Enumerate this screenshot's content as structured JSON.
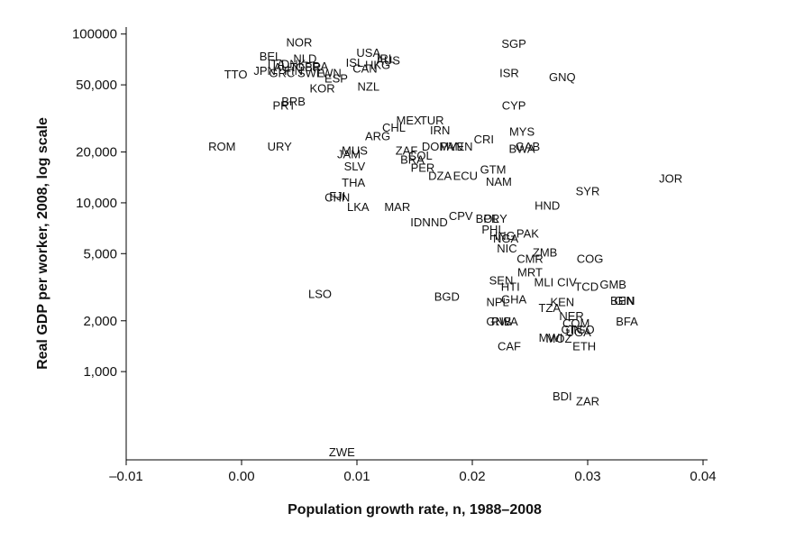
{
  "chart_data": {
    "type": "scatter",
    "title": "",
    "xlabel": "Population growth rate, n, 1988–2008",
    "ylabel": "Real GDP per worker, 2008, log scale",
    "xlim": [
      -0.01,
      0.04
    ],
    "ylim": [
      300,
      110000
    ],
    "yscale": "log",
    "grid": false,
    "legend": "none",
    "x_ticks": [
      {
        "value": -0.01,
        "label": "–0.01"
      },
      {
        "value": 0.0,
        "label": "0.00"
      },
      {
        "value": 0.01,
        "label": "0.01"
      },
      {
        "value": 0.02,
        "label": "0.02"
      },
      {
        "value": 0.03,
        "label": "0.03"
      },
      {
        "value": 0.04,
        "label": "0.04"
      }
    ],
    "y_ticks": [
      {
        "value": 100000,
        "label": "100000"
      },
      {
        "value": 50000,
        "label": "50,000"
      },
      {
        "value": 20000,
        "label": "20,000"
      },
      {
        "value": 10000,
        "label": "10,000"
      },
      {
        "value": 5000,
        "label": "5,000"
      },
      {
        "value": 2000,
        "label": "2,000"
      },
      {
        "value": 1000,
        "label": "1,000"
      }
    ],
    "points": [
      {
        "label": "NOR",
        "x": 0.005,
        "y": 90000
      },
      {
        "label": "USA",
        "x": 0.011,
        "y": 78000
      },
      {
        "label": "BEL",
        "x": 0.0025,
        "y": 74000
      },
      {
        "label": "NLD",
        "x": 0.0055,
        "y": 72000
      },
      {
        "label": "IRL",
        "x": 0.0125,
        "y": 72000
      },
      {
        "label": "AUS",
        "x": 0.0127,
        "y": 70000
      },
      {
        "label": "ITA",
        "x": 0.003,
        "y": 67000
      },
      {
        "label": "DNK",
        "x": 0.0045,
        "y": 67000
      },
      {
        "label": "FRA",
        "x": 0.0065,
        "y": 65000
      },
      {
        "label": "ISL",
        "x": 0.0098,
        "y": 68000
      },
      {
        "label": "HKG",
        "x": 0.0118,
        "y": 66000
      },
      {
        "label": "CAN",
        "x": 0.0107,
        "y": 63000
      },
      {
        "label": "AUT",
        "x": 0.0038,
        "y": 64000
      },
      {
        "label": "GBR",
        "x": 0.0058,
        "y": 64000
      },
      {
        "label": "JPN",
        "x": 0.002,
        "y": 61000
      },
      {
        "label": "GRC",
        "x": 0.0035,
        "y": 59000
      },
      {
        "label": "FIN",
        "x": 0.0045,
        "y": 61000
      },
      {
        "label": "SWE",
        "x": 0.006,
        "y": 59000
      },
      {
        "label": "TWN",
        "x": 0.0075,
        "y": 59000
      },
      {
        "label": "TTO",
        "x": -0.0005,
        "y": 58000
      },
      {
        "label": "ESP",
        "x": 0.0082,
        "y": 55000
      },
      {
        "label": "SGP",
        "x": 0.0236,
        "y": 88000
      },
      {
        "label": "ISR",
        "x": 0.0232,
        "y": 59000
      },
      {
        "label": "GNQ",
        "x": 0.0278,
        "y": 56000
      },
      {
        "label": "KOR",
        "x": 0.007,
        "y": 48000
      },
      {
        "label": "NZL",
        "x": 0.011,
        "y": 49000
      },
      {
        "label": "BRB",
        "x": 0.0045,
        "y": 40000
      },
      {
        "label": "PRT",
        "x": 0.0037,
        "y": 38000
      },
      {
        "label": "CYP",
        "x": 0.0236,
        "y": 38000
      },
      {
        "label": "MEX",
        "x": 0.0145,
        "y": 31000
      },
      {
        "label": "TUR",
        "x": 0.0165,
        "y": 31000
      },
      {
        "label": "CHL",
        "x": 0.0132,
        "y": 28000
      },
      {
        "label": "IRN",
        "x": 0.0172,
        "y": 27000
      },
      {
        "label": "MYS",
        "x": 0.0243,
        "y": 26500
      },
      {
        "label": "ARG",
        "x": 0.0118,
        "y": 25000
      },
      {
        "label": "CRI",
        "x": 0.021,
        "y": 24000
      },
      {
        "label": "ROM",
        "x": -0.0017,
        "y": 21700
      },
      {
        "label": "URY",
        "x": 0.0033,
        "y": 21700
      },
      {
        "label": "DOM",
        "x": 0.0168,
        "y": 21700
      },
      {
        "label": "PAN",
        "x": 0.0182,
        "y": 21700
      },
      {
        "label": "VEN",
        "x": 0.019,
        "y": 21700
      },
      {
        "label": "GAB",
        "x": 0.0248,
        "y": 21700
      },
      {
        "label": "BWA",
        "x": 0.0243,
        "y": 21000
      },
      {
        "label": "MUS",
        "x": 0.0098,
        "y": 20500
      },
      {
        "label": "ZAF",
        "x": 0.0143,
        "y": 20500
      },
      {
        "label": "JAM",
        "x": 0.0093,
        "y": 19500
      },
      {
        "label": "COL",
        "x": 0.0155,
        "y": 19200
      },
      {
        "label": "BRA",
        "x": 0.0148,
        "y": 18200
      },
      {
        "label": "SLV",
        "x": 0.0098,
        "y": 16500
      },
      {
        "label": "PER",
        "x": 0.0157,
        "y": 16200
      },
      {
        "label": "GTM",
        "x": 0.0218,
        "y": 15800
      },
      {
        "label": "DZA",
        "x": 0.0172,
        "y": 14500
      },
      {
        "label": "ECU",
        "x": 0.0194,
        "y": 14500
      },
      {
        "label": "NAM",
        "x": 0.0223,
        "y": 13400
      },
      {
        "label": "THA",
        "x": 0.0097,
        "y": 13300
      },
      {
        "label": "SYR",
        "x": 0.03,
        "y": 11800
      },
      {
        "label": "JOR",
        "x": 0.0372,
        "y": 14000
      },
      {
        "label": "CHN",
        "x": 0.0083,
        "y": 10800
      },
      {
        "label": "FJI",
        "x": 0.0083,
        "y": 11000
      },
      {
        "label": "LKA",
        "x": 0.0101,
        "y": 9500
      },
      {
        "label": "MAR",
        "x": 0.0135,
        "y": 9500
      },
      {
        "label": "HND",
        "x": 0.0265,
        "y": 9700
      },
      {
        "label": "CPV",
        "x": 0.019,
        "y": 8400
      },
      {
        "label": "BOL",
        "x": 0.0213,
        "y": 8100
      },
      {
        "label": "PRY",
        "x": 0.022,
        "y": 8100
      },
      {
        "label": "IDN",
        "x": 0.0155,
        "y": 7700
      },
      {
        "label": "IND",
        "x": 0.017,
        "y": 7700
      },
      {
        "label": "PHL",
        "x": 0.0218,
        "y": 7000
      },
      {
        "label": "PAK",
        "x": 0.0248,
        "y": 6600
      },
      {
        "label": "HNG",
        "x": 0.0226,
        "y": 6400
      },
      {
        "label": "NGA",
        "x": 0.0229,
        "y": 6200
      },
      {
        "label": "NIC",
        "x": 0.023,
        "y": 5400
      },
      {
        "label": "ZMB",
        "x": 0.0263,
        "y": 5100
      },
      {
        "label": "CMR",
        "x": 0.025,
        "y": 4700
      },
      {
        "label": "COG",
        "x": 0.0302,
        "y": 4700
      },
      {
        "label": "MRT",
        "x": 0.025,
        "y": 3900
      },
      {
        "label": "SEN",
        "x": 0.0225,
        "y": 3500
      },
      {
        "label": "MLI",
        "x": 0.0262,
        "y": 3400
      },
      {
        "label": "CIV",
        "x": 0.0282,
        "y": 3400
      },
      {
        "label": "GMB",
        "x": 0.0322,
        "y": 3300
      },
      {
        "label": "HTI",
        "x": 0.0233,
        "y": 3200
      },
      {
        "label": "TCD",
        "x": 0.0299,
        "y": 3200
      },
      {
        "label": "LSO",
        "x": 0.0068,
        "y": 2900
      },
      {
        "label": "BGD",
        "x": 0.0178,
        "y": 2800
      },
      {
        "label": "GHA",
        "x": 0.0236,
        "y": 2700
      },
      {
        "label": "KEN",
        "x": 0.0278,
        "y": 2600
      },
      {
        "label": "BEN",
        "x": 0.033,
        "y": 2650
      },
      {
        "label": "GIN",
        "x": 0.0332,
        "y": 2650
      },
      {
        "label": "NPL",
        "x": 0.0222,
        "y": 2600
      },
      {
        "label": "TZA",
        "x": 0.0267,
        "y": 2400
      },
      {
        "label": "NER",
        "x": 0.0286,
        "y": 2150
      },
      {
        "label": "BFA",
        "x": 0.0334,
        "y": 2000
      },
      {
        "label": "GNB",
        "x": 0.0223,
        "y": 2000
      },
      {
        "label": "RWA",
        "x": 0.0228,
        "y": 2000
      },
      {
        "label": "COM",
        "x": 0.029,
        "y": 1950
      },
      {
        "label": "GIN",
        "x": 0.0286,
        "y": 1780
      },
      {
        "label": "TGO",
        "x": 0.0295,
        "y": 1780
      },
      {
        "label": "UGA",
        "x": 0.0292,
        "y": 1720
      },
      {
        "label": "MWI",
        "x": 0.0268,
        "y": 1600
      },
      {
        "label": "MOZ",
        "x": 0.0275,
        "y": 1580
      },
      {
        "label": "CAF",
        "x": 0.0232,
        "y": 1420
      },
      {
        "label": "ETH",
        "x": 0.0297,
        "y": 1420
      },
      {
        "label": "BDI",
        "x": 0.0278,
        "y": 720
      },
      {
        "label": "ZAR",
        "x": 0.03,
        "y": 670
      },
      {
        "label": "ZWE",
        "x": 0.0087,
        "y": 335
      }
    ]
  }
}
